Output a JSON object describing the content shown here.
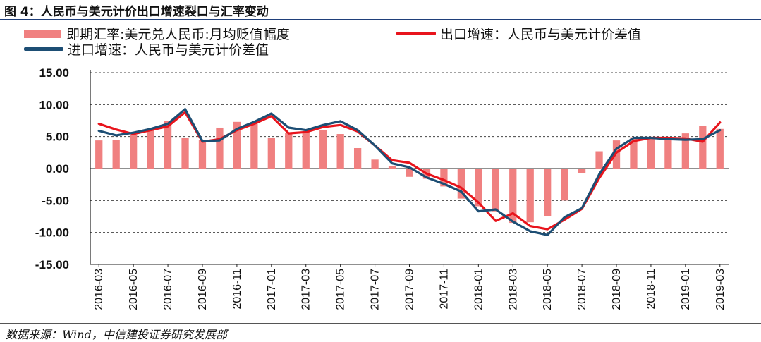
{
  "title": "图 4：人民币与美元计价出口增速裂口与汇率变动",
  "source": "数据来源：Wind，中信建投证券研究发展部",
  "colors": {
    "bar": "#f08080",
    "export": "#e8141c",
    "import": "#1d4e74",
    "grid": "#444444"
  },
  "chart_data": {
    "type": "bar+line",
    "title": "图 4：人民币与美元计价出口增速裂口与汇率变动",
    "ylim": [
      -15,
      15
    ],
    "yticks": [
      "15.00",
      "10.00",
      "5.00",
      "0.00",
      "-5.00",
      "-10.00",
      "-15.00"
    ],
    "ytick_values": [
      15,
      10,
      5,
      0,
      -5,
      -10,
      -15
    ],
    "categories": [
      "2016-03",
      "2016-04",
      "2016-05",
      "2016-06",
      "2016-07",
      "2016-08",
      "2016-09",
      "2016-10",
      "2016-11",
      "2016-12",
      "2017-01",
      "2017-02",
      "2017-03",
      "2017-04",
      "2017-05",
      "2017-06",
      "2017-07",
      "2017-08",
      "2017-09",
      "2017-10",
      "2017-11",
      "2017-12",
      "2018-01",
      "2018-02",
      "2018-03",
      "2018-04",
      "2018-05",
      "2018-06",
      "2018-07",
      "2018-08",
      "2018-09",
      "2018-10",
      "2018-11",
      "2018-12",
      "2019-01",
      "2019-02",
      "2019-03"
    ],
    "x_tick_labels": [
      "2016-03",
      "2016-05",
      "2016-07",
      "2016-09",
      "2016-11",
      "2017-01",
      "2017-03",
      "2017-05",
      "2017-07",
      "2017-09",
      "2017-11",
      "2018-01",
      "2018-03",
      "2018-05",
      "2018-07",
      "2018-09",
      "2018-11",
      "2019-01",
      "2019-03"
    ],
    "legend": [
      {
        "name": "即期汇率:美元兑人民币:月均贬值幅度",
        "kind": "bar"
      },
      {
        "name": "出口增速：人民币与美元计价差值",
        "kind": "line-red"
      },
      {
        "name": "进口增速：人民币与美元计价差值",
        "kind": "line-blue"
      }
    ],
    "series": [
      {
        "name": "即期汇率:美元兑人民币:月均贬值幅度",
        "type": "bar",
        "values": [
          4.4,
          4.5,
          5.3,
          6.2,
          7.5,
          4.8,
          4.5,
          6.4,
          7.3,
          7.1,
          4.8,
          5.6,
          5.8,
          6.0,
          5.4,
          3.2,
          1.4,
          0.4,
          -1.3,
          -1.6,
          -2.8,
          -4.7,
          -5.9,
          -6.7,
          -8.5,
          -8.4,
          -7.5,
          -5.0,
          -0.7,
          2.7,
          4.4,
          4.9,
          4.7,
          4.8,
          5.5,
          6.7,
          6.2
        ]
      },
      {
        "name": "出口增速：人民币与美元计价差值",
        "type": "line",
        "values": [
          7.0,
          6.1,
          5.4,
          6.0,
          6.6,
          8.8,
          4.2,
          4.6,
          6.0,
          7.0,
          8.2,
          5.5,
          5.7,
          6.5,
          6.8,
          5.8,
          3.6,
          1.3,
          0.9,
          -0.8,
          -1.8,
          -3.0,
          -5.3,
          -8.2,
          -7.0,
          -9.0,
          -9.5,
          -8.0,
          -6.3,
          -1.5,
          2.5,
          4.3,
          4.8,
          4.8,
          4.7,
          4.2,
          7.2
        ]
      },
      {
        "name": "进口增速：人民币与美元计价差值",
        "type": "line",
        "values": [
          5.9,
          5.2,
          5.6,
          6.2,
          7.0,
          9.3,
          4.3,
          4.4,
          6.2,
          7.3,
          8.6,
          6.4,
          6.0,
          6.8,
          7.4,
          6.0,
          3.6,
          0.8,
          0.2,
          -1.4,
          -2.4,
          -3.6,
          -6.7,
          -6.4,
          -8.3,
          -9.8,
          -10.4,
          -7.6,
          -6.2,
          -0.9,
          3.1,
          4.8,
          4.8,
          4.6,
          4.5,
          4.6,
          6.0
        ]
      }
    ]
  }
}
